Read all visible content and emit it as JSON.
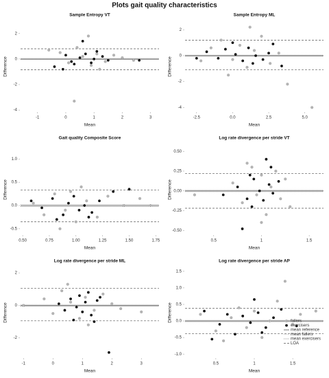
{
  "title": "Plots gait quality characteristics",
  "legend": {
    "position": "bottom-right",
    "lines": [
      "mean reference",
      "mean fallers",
      "mean exercisers",
      "LOA"
    ]
  },
  "chart_data": [
    {
      "type": "scatter",
      "title": "Sample Entropy VT",
      "x_label": "Mean",
      "y_label": "Difference",
      "xlim": [
        -1.6,
        3.3
      ],
      "xticks": [
        -1,
        0,
        1,
        2,
        3
      ],
      "ylim": [
        -4.1,
        2.9
      ],
      "yticks": [
        -4,
        -2,
        0,
        2
      ],
      "series": [
        {
          "name": "fallers",
          "color": "#b5b5b5",
          "x": [
            -0.2,
            0.1,
            0.4,
            0.6,
            0.9,
            1.1,
            1.4,
            1.7,
            2.0,
            2.4,
            -0.6,
            0.3,
            0.8,
            1.2
          ],
          "values": [
            0.5,
            -0.3,
            0.9,
            0.2,
            -0.5,
            0.4,
            -0.2,
            0.3,
            0.1,
            -0.1,
            0.7,
            -3.3,
            1.8,
            -0.8
          ]
        },
        {
          "name": "exercisers",
          "color": "#111111",
          "x": [
            -0.4,
            0.0,
            0.2,
            0.5,
            0.7,
            0.9,
            1.0,
            1.3,
            1.5,
            0.6,
            0.3,
            1.1,
            2.6,
            -0.1
          ],
          "values": [
            -0.6,
            0.3,
            -0.2,
            0.1,
            0.4,
            -0.3,
            0.0,
            0.2,
            -0.1,
            1.4,
            -0.4,
            0.6,
            -0.1,
            -0.8
          ]
        }
      ],
      "ref_lines": {
        "reference": 0,
        "fallers": 0.05,
        "exercisers": -0.03,
        "loa": [
          0.8,
          -0.85
        ]
      }
    },
    {
      "type": "scatter",
      "title": "Sample Entropy ML",
      "x_label": "Mean",
      "y_label": "Difference",
      "xlim": [
        -3.3,
        6.3
      ],
      "xticks": [
        {
          "value": -2.5,
          "label": "-2.5"
        },
        {
          "value": 0,
          "label": "0.0"
        },
        {
          "value": 2.5,
          "label": "2.5"
        },
        {
          "value": 5,
          "label": "5.0"
        }
      ],
      "ylim": [
        -4.3,
        2.6
      ],
      "yticks": [
        -4,
        -2,
        0,
        2
      ],
      "series": [
        {
          "name": "fallers",
          "color": "#b5b5b5",
          "x": [
            -2.2,
            -1.5,
            -0.8,
            0.0,
            0.5,
            1.0,
            1.5,
            2.0,
            2.6,
            3.2,
            3.8,
            -0.3,
            1.2,
            5.5
          ],
          "values": [
            -0.4,
            0.6,
            1.2,
            -0.3,
            0.8,
            -0.9,
            0.4,
            1.5,
            -0.6,
            0.2,
            -2.2,
            -1.5,
            2.2,
            -4.0
          ]
        },
        {
          "name": "exercisers",
          "color": "#111111",
          "x": [
            -1.8,
            -1.0,
            -0.5,
            0.2,
            0.7,
            1.1,
            1.6,
            2.1,
            2.8,
            3.4,
            0.0,
            1.4,
            -2.5,
            2.5
          ],
          "values": [
            0.3,
            -0.2,
            0.5,
            0.1,
            -0.4,
            0.6,
            0.0,
            -0.3,
            0.9,
            -0.8,
            1.0,
            -0.6,
            -0.2,
            0.2
          ]
        }
      ],
      "ref_lines": {
        "reference": 0,
        "fallers": 0.06,
        "exercisers": -0.04,
        "loa": [
          1.2,
          -1.1
        ]
      }
    },
    {
      "type": "scatter",
      "title": "Gait quality Composite Score",
      "x_label": "Mean",
      "y_label": "Difference",
      "xlim": [
        0.48,
        1.78
      ],
      "xticks": [
        {
          "value": 0.5,
          "label": "0.50"
        },
        0.75,
        {
          "value": 1,
          "label": "1.00"
        },
        1.25,
        {
          "value": 1.5,
          "label": "1.50"
        },
        1.75
      ],
      "ylim": [
        -0.62,
        1.3
      ],
      "yticks": [
        -0.5,
        {
          "value": 0,
          "label": "0.0"
        },
        0.5,
        {
          "value": 1,
          "label": "1.0"
        }
      ],
      "series": [
        {
          "name": "fallers",
          "color": "#b5b5b5",
          "x": [
            0.6,
            0.7,
            0.8,
            0.9,
            0.95,
            1.0,
            1.1,
            1.2,
            1.3,
            1.45,
            1.6,
            0.85,
            1.05,
            1.7
          ],
          "values": [
            0.05,
            -0.2,
            0.25,
            -0.1,
            0.3,
            -0.35,
            0.1,
            -0.25,
            0.2,
            0.0,
            0.15,
            -0.5,
            0.4,
            0.0
          ]
        },
        {
          "name": "exercisers",
          "color": "#111111",
          "x": [
            0.58,
            0.68,
            0.78,
            0.88,
            0.93,
            0.98,
            1.03,
            1.08,
            1.15,
            1.22,
            1.35,
            1.5,
            0.82,
            1.12
          ],
          "values": [
            0.1,
            -0.05,
            0.15,
            -0.2,
            0.05,
            0.2,
            -0.1,
            0.0,
            -0.15,
            0.1,
            0.3,
            0.35,
            -0.3,
            -0.25
          ]
        }
      ],
      "ref_lines": {
        "reference": 0,
        "fallers": 0.02,
        "exercisers": -0.02,
        "loa": [
          0.33,
          -0.35
        ]
      }
    },
    {
      "type": "scatter",
      "title": "Log rate divergence per stride VT",
      "x_label": "Mean",
      "y_label": "Difference",
      "xlim": [
        0.2,
        1.65
      ],
      "xticks": [
        0.5,
        1,
        1.5
      ],
      "ylim": [
        -0.55,
        0.58
      ],
      "yticks": [
        {
          "value": -0.5,
          "label": "-0.50"
        },
        -0.25,
        {
          "value": 0,
          "label": "0.00"
        },
        0.25,
        {
          "value": 0.5,
          "label": "0.50"
        }
      ],
      "series": [
        {
          "name": "fallers",
          "color": "#b5b5b5",
          "x": [
            0.7,
            0.8,
            0.9,
            0.95,
            1.0,
            1.05,
            1.1,
            1.15,
            1.2,
            1.3,
            0.85,
            1.0,
            1.25,
            0.3
          ],
          "values": [
            0.1,
            -0.15,
            0.3,
            -0.05,
            0.2,
            -0.3,
            0.05,
            0.25,
            -0.1,
            -0.2,
            0.35,
            -0.4,
            0.15,
            -0.05
          ]
        },
        {
          "name": "exercisers",
          "color": "#111111",
          "x": [
            0.6,
            0.75,
            0.85,
            0.92,
            0.98,
            1.02,
            1.08,
            1.12,
            1.18,
            0.9,
            1.05,
            1.1,
            0.8,
            0.88
          ],
          "values": [
            -0.05,
            0.05,
            -0.1,
            0.15,
            0.0,
            -0.12,
            0.08,
            -0.03,
            0.12,
            -0.2,
            0.4,
            0.3,
            -0.48,
            0.2
          ]
        }
      ],
      "ref_lines": {
        "reference": 0,
        "fallers": 0.01,
        "exercisers": -0.01,
        "loa": [
          0.22,
          -0.22
        ]
      }
    },
    {
      "type": "scatter",
      "title": "Log rate divergence per stride ML",
      "x_label": "Mean",
      "y_label": "Difference",
      "xlim": [
        -1.1,
        3.6
      ],
      "xticks": [
        -1,
        0,
        1,
        2,
        3
      ],
      "ylim": [
        -3.2,
        2.3
      ],
      "yticks": [
        -2,
        0,
        2
      ],
      "series": [
        {
          "name": "fallers",
          "color": "#b5b5b5",
          "x": [
            -0.3,
            0.0,
            0.3,
            0.6,
            0.9,
            1.1,
            1.4,
            1.7,
            2.0,
            2.3,
            0.5,
            1.2,
            3.0,
            -1.0
          ],
          "values": [
            0.4,
            -0.5,
            0.9,
            0.2,
            -0.8,
            0.5,
            -0.3,
            0.7,
            0.1,
            -0.2,
            1.3,
            -1.2,
            -0.4,
            0.0
          ]
        },
        {
          "name": "exercisers",
          "color": "#111111",
          "x": [
            0.2,
            0.4,
            0.6,
            0.8,
            0.9,
            1.0,
            1.1,
            1.2,
            1.3,
            1.5,
            0.7,
            1.6,
            1.9,
            1.4
          ],
          "values": [
            0.1,
            -0.3,
            0.4,
            -0.1,
            0.6,
            -0.4,
            0.2,
            0.8,
            -0.6,
            0.3,
            -0.9,
            0.5,
            -2.9,
            -1.0
          ]
        }
      ],
      "ref_lines": {
        "reference": 0,
        "fallers": 0.05,
        "exercisers": -0.05,
        "loa": [
          1.05,
          -0.95
        ]
      }
    },
    {
      "type": "scatter",
      "title": "Log rate divergence per stride AP",
      "x_label": "Mean",
      "y_label": "Difference",
      "xlim": [
        0.1,
        1.9
      ],
      "xticks": [
        0.5,
        1,
        1.5
      ],
      "ylim": [
        -1.1,
        1.6
      ],
      "yticks": [
        {
          "value": -1,
          "label": "-1.0"
        },
        -0.5,
        {
          "value": 0,
          "label": "0.0"
        },
        0.5,
        {
          "value": 1,
          "label": "1.0"
        },
        1.5
      ],
      "series": [
        {
          "name": "fallers",
          "color": "#b5b5b5",
          "x": [
            0.3,
            0.5,
            0.7,
            0.8,
            0.9,
            1.0,
            1.1,
            1.2,
            1.3,
            1.5,
            1.6,
            0.6,
            1.4,
            1.8
          ],
          "values": [
            0.2,
            -0.3,
            0.1,
            0.4,
            -0.2,
            0.3,
            -0.5,
            0.0,
            0.6,
            -0.1,
            0.2,
            -0.6,
            1.2,
            0.3
          ]
        },
        {
          "name": "exercisers",
          "color": "#111111",
          "x": [
            0.35,
            0.55,
            0.65,
            0.75,
            0.85,
            0.95,
            1.05,
            1.15,
            1.25,
            1.35,
            0.45,
            1.0,
            1.1,
            1.55
          ],
          "values": [
            0.3,
            -0.1,
            0.2,
            -0.4,
            0.15,
            -0.05,
            0.25,
            -0.2,
            0.1,
            0.35,
            -0.55,
            0.65,
            -0.35,
            -0.15
          ]
        }
      ],
      "ref_lines": {
        "reference": 0,
        "fallers": 0.02,
        "exercisers": -0.02,
        "loa": [
          0.38,
          -0.38
        ]
      }
    }
  ]
}
